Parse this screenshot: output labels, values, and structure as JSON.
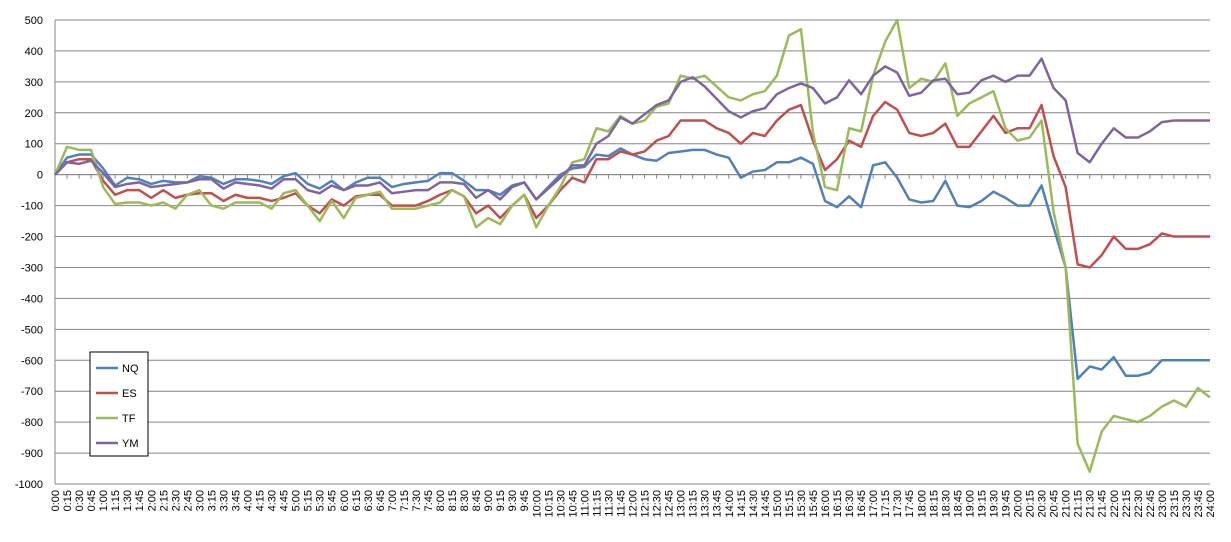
{
  "chart_data": {
    "type": "line",
    "categories": [
      "0:00",
      "0:15",
      "0:30",
      "0:45",
      "1:00",
      "1:15",
      "1:30",
      "1:45",
      "2:00",
      "2:15",
      "2:30",
      "2:45",
      "3:00",
      "3:15",
      "3:30",
      "3:45",
      "4:00",
      "4:15",
      "4:30",
      "4:45",
      "5:00",
      "5:15",
      "5:30",
      "5:45",
      "6:00",
      "6:15",
      "6:30",
      "6:45",
      "7:00",
      "7:15",
      "7:30",
      "7:45",
      "8:00",
      "8:15",
      "8:30",
      "8:45",
      "9:00",
      "9:15",
      "9:30",
      "9:45",
      "10:00",
      "10:15",
      "10:30",
      "10:45",
      "11:00",
      "11:15",
      "11:30",
      "11:45",
      "12:00",
      "12:15",
      "12:30",
      "12:45",
      "13:00",
      "13:15",
      "13:30",
      "13:45",
      "14:00",
      "14:15",
      "14:30",
      "14:45",
      "15:00",
      "15:15",
      "15:30",
      "15:45",
      "16:00",
      "16:15",
      "16:30",
      "16:45",
      "17:00",
      "17:15",
      "17:30",
      "17:45",
      "18:00",
      "18:15",
      "18:30",
      "18:45",
      "19:00",
      "19:15",
      "19:30",
      "19:45",
      "20:00",
      "20:15",
      "20:30",
      "20:45",
      "21:00",
      "21:15",
      "21:30",
      "21:45",
      "22:00",
      "22:15",
      "22:30",
      "22:45",
      "23:00",
      "23:15",
      "23:30",
      "23:45",
      "24:00"
    ],
    "series": [
      {
        "name": "NQ",
        "color": "#4f81bd",
        "values": [
          0,
          55,
          65,
          65,
          20,
          -35,
          -10,
          -15,
          -30,
          -20,
          -25,
          -25,
          -5,
          -10,
          -30,
          -15,
          -15,
          -20,
          -30,
          -5,
          5,
          -30,
          -45,
          -20,
          -50,
          -25,
          -10,
          -10,
          -40,
          -30,
          -25,
          -20,
          5,
          5,
          -20,
          -50,
          -50,
          -65,
          -35,
          -25,
          -80,
          -40,
          0,
          20,
          25,
          65,
          60,
          85,
          65,
          50,
          45,
          70,
          75,
          80,
          80,
          65,
          55,
          -10,
          10,
          15,
          40,
          40,
          55,
          35,
          -85,
          -105,
          -70,
          -105,
          30,
          40,
          -10,
          -80,
          -90,
          -85,
          -20,
          -100,
          -105,
          -85,
          -55,
          -75,
          -100,
          -100,
          -35,
          -170,
          -300,
          -660,
          -620,
          -630,
          -590,
          -650,
          -650,
          -640,
          -600,
          -600,
          -600,
          -600,
          -600
        ]
      },
      {
        "name": "ES",
        "color": "#c0504d",
        "values": [
          0,
          40,
          50,
          50,
          -20,
          -65,
          -50,
          -50,
          -75,
          -50,
          -75,
          -65,
          -60,
          -60,
          -85,
          -65,
          -75,
          -75,
          -85,
          -75,
          -60,
          -100,
          -125,
          -80,
          -100,
          -70,
          -65,
          -65,
          -100,
          -100,
          -100,
          -85,
          -65,
          -50,
          -70,
          -125,
          -100,
          -140,
          -100,
          -65,
          -140,
          -100,
          -50,
          -10,
          -25,
          50,
          50,
          75,
          65,
          75,
          110,
          125,
          175,
          175,
          175,
          150,
          135,
          100,
          135,
          125,
          175,
          210,
          225,
          110,
          15,
          50,
          110,
          90,
          190,
          235,
          210,
          135,
          125,
          135,
          165,
          90,
          90,
          140,
          190,
          135,
          150,
          150,
          225,
          60,
          -40,
          -290,
          -300,
          -260,
          -200,
          -240,
          -240,
          -225,
          -190,
          -200,
          -200,
          -200,
          -200
        ]
      },
      {
        "name": "TF",
        "color": "#9bbb59",
        "values": [
          0,
          90,
          80,
          80,
          -40,
          -95,
          -90,
          -90,
          -100,
          -90,
          -110,
          -65,
          -50,
          -100,
          -110,
          -90,
          -90,
          -90,
          -110,
          -60,
          -50,
          -100,
          -150,
          -85,
          -140,
          -75,
          -65,
          -55,
          -110,
          -110,
          -110,
          -100,
          -90,
          -50,
          -70,
          -170,
          -140,
          -160,
          -100,
          -65,
          -170,
          -100,
          -40,
          40,
          50,
          150,
          140,
          190,
          165,
          175,
          220,
          230,
          320,
          310,
          320,
          285,
          250,
          240,
          260,
          270,
          320,
          450,
          470,
          135,
          -40,
          -50,
          150,
          140,
          320,
          430,
          500,
          280,
          310,
          300,
          360,
          190,
          230,
          250,
          270,
          150,
          110,
          120,
          175,
          -120,
          -300,
          -870,
          -960,
          -830,
          -780,
          -790,
          -800,
          -780,
          -750,
          -730,
          -750,
          -690,
          -720
        ]
      },
      {
        "name": "YM",
        "color": "#8064a2",
        "values": [
          0,
          40,
          35,
          45,
          5,
          -40,
          -30,
          -25,
          -40,
          -35,
          -30,
          -25,
          -15,
          -15,
          -45,
          -25,
          -30,
          -35,
          -45,
          -15,
          -15,
          -50,
          -60,
          -35,
          -50,
          -35,
          -35,
          -25,
          -60,
          -55,
          -50,
          -50,
          -25,
          -25,
          -30,
          -75,
          -50,
          -80,
          -40,
          -25,
          -80,
          -45,
          -10,
          30,
          30,
          100,
          125,
          185,
          165,
          195,
          225,
          240,
          300,
          315,
          285,
          245,
          205,
          185,
          205,
          215,
          260,
          280,
          295,
          280,
          230,
          250,
          305,
          260,
          320,
          350,
          330,
          255,
          265,
          305,
          310,
          260,
          265,
          305,
          320,
          300,
          320,
          320,
          375,
          280,
          240,
          70,
          40,
          100,
          150,
          120,
          120,
          140,
          170,
          175,
          175,
          175,
          175
        ]
      }
    ],
    "ylim": [
      -1000,
      500
    ],
    "yticks": [
      -1000,
      -900,
      -800,
      -700,
      -600,
      -500,
      -400,
      -300,
      -200,
      -100,
      0,
      100,
      200,
      300,
      400,
      500
    ],
    "grid": true,
    "legend": "left"
  }
}
